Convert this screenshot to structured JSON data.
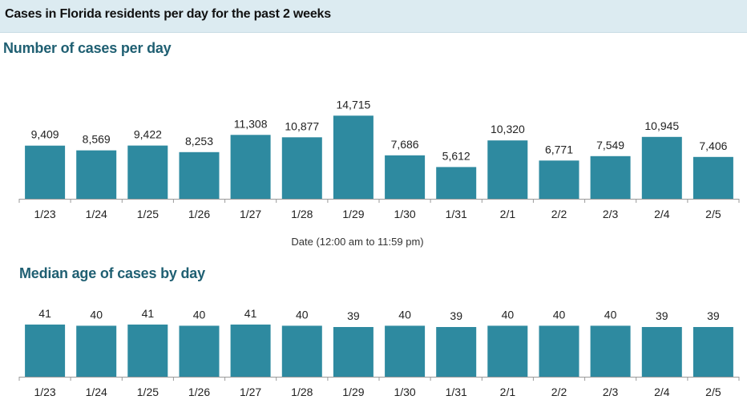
{
  "header": {
    "title": "Cases in Florida residents per day for the past 2 weeks"
  },
  "colors": {
    "bar": "#2e8aa0",
    "header_bg": "#dcebf1",
    "section_title": "#1f5f72",
    "axis": "#9a9a9a"
  },
  "chart_data": [
    {
      "type": "bar",
      "title": "Number of cases per day",
      "xlabel": "Date (12:00 am to 11:59 pm)",
      "ylabel": "",
      "categories": [
        "1/23",
        "1/24",
        "1/25",
        "1/26",
        "1/27",
        "1/28",
        "1/29",
        "1/30",
        "1/31",
        "2/1",
        "2/2",
        "2/3",
        "2/4",
        "2/5"
      ],
      "values": [
        9409,
        8569,
        9422,
        8253,
        11308,
        10877,
        14715,
        7686,
        5612,
        10320,
        6771,
        7549,
        10945,
        7406
      ],
      "value_labels": [
        "9,409",
        "8,569",
        "9,422",
        "8,253",
        "11,308",
        "10,877",
        "14,715",
        "7,686",
        "5,612",
        "10,320",
        "6,771",
        "7,549",
        "10,945",
        "7,406"
      ],
      "ylim": [
        0,
        16000
      ],
      "grid": false
    },
    {
      "type": "bar",
      "title": "Median age of cases by day",
      "xlabel": "",
      "ylabel": "",
      "categories": [
        "1/23",
        "1/24",
        "1/25",
        "1/26",
        "1/27",
        "1/28",
        "1/29",
        "1/30",
        "1/31",
        "2/1",
        "2/2",
        "2/3",
        "2/4",
        "2/5"
      ],
      "values": [
        41,
        40,
        41,
        40,
        41,
        40,
        39,
        40,
        39,
        40,
        40,
        40,
        39,
        39
      ],
      "value_labels": [
        "41",
        "40",
        "41",
        "40",
        "41",
        "40",
        "39",
        "40",
        "39",
        "40",
        "40",
        "40",
        "39",
        "39"
      ],
      "ylim": [
        0,
        45
      ],
      "grid": false
    }
  ]
}
